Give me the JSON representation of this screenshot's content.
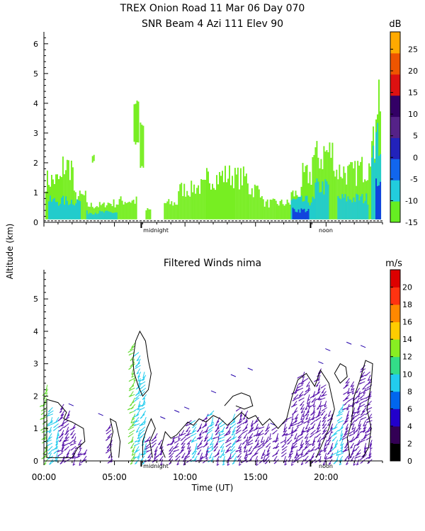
{
  "header": {
    "title_line1": "TREX Onion Road  11 Mar 06 Day 070",
    "title_line2": "SNR Beam 4 Azi 111 Elev 90"
  },
  "shared": {
    "ylabel": "Altitude (km)",
    "xlabel": "Time (UT)",
    "midnight_label": "midnight",
    "noon_label": "noon"
  },
  "chart_data": [
    {
      "type": "heatmap",
      "title": "",
      "colorbar_label": "dB",
      "ylim": [
        0,
        6.4
      ],
      "xlim": [
        0,
        24
      ],
      "y_ticks": [
        0,
        1,
        2,
        3,
        4,
        5,
        6
      ],
      "colorbar_ticks": [
        25,
        20,
        15,
        10,
        5,
        0,
        -5,
        -10,
        -15
      ],
      "colorbar_range": [
        -15,
        29
      ],
      "colorbar_colors": [
        "#66ee22",
        "#22ccdd",
        "#1166ee",
        "#2222bb",
        "#552288",
        "#330066",
        "#dd1111",
        "#ee5500",
        "#ffaa00"
      ],
      "colors": {
        "low": "#77ee22",
        "mid": "#22cccc",
        "high": "#1144dd",
        "peak": "#2a1a88"
      },
      "blocks": [
        {
          "x0": 0.1,
          "x1": 1.3,
          "top": 1.8
        },
        {
          "x0": 1.3,
          "x1": 2.1,
          "top": 2.4
        },
        {
          "x0": 2.1,
          "x1": 3.0,
          "top": 1.1
        },
        {
          "x0": 3.0,
          "x1": 4.3,
          "top": 0.7
        },
        {
          "x0": 4.3,
          "x1": 5.3,
          "top": 0.8
        },
        {
          "x0": 5.3,
          "x1": 6.6,
          "top": 0.9
        },
        {
          "x0": 7.2,
          "x1": 7.6,
          "top": 0.5
        },
        {
          "x0": 8.5,
          "x1": 9.5,
          "top": 0.8
        },
        {
          "x0": 9.5,
          "x1": 10.5,
          "top": 1.4
        },
        {
          "x0": 10.5,
          "x1": 11.5,
          "top": 1.5
        },
        {
          "x0": 11.5,
          "x1": 12.5,
          "top": 1.9
        },
        {
          "x0": 12.5,
          "x1": 13.5,
          "top": 2.0
        },
        {
          "x0": 13.5,
          "x1": 14.5,
          "top": 1.9
        },
        {
          "x0": 14.5,
          "x1": 15.5,
          "top": 1.4
        },
        {
          "x0": 15.5,
          "x1": 16.5,
          "top": 0.8
        },
        {
          "x0": 16.5,
          "x1": 17.5,
          "top": 0.8
        },
        {
          "x0": 17.5,
          "x1": 18.3,
          "top": 1.2
        },
        {
          "x0": 18.3,
          "x1": 19.0,
          "top": 2.0
        },
        {
          "x0": 19.0,
          "x1": 19.8,
          "top": 2.8
        },
        {
          "x0": 19.8,
          "x1": 20.6,
          "top": 3.0
        },
        {
          "x0": 20.6,
          "x1": 21.4,
          "top": 2.2
        },
        {
          "x0": 21.4,
          "x1": 22.2,
          "top": 2.1
        },
        {
          "x0": 22.2,
          "x1": 23.0,
          "top": 2.3
        },
        {
          "x0": 23.0,
          "x1": 23.5,
          "top": 3.3
        },
        {
          "x0": 23.5,
          "x1": 23.9,
          "top": 5.6
        }
      ],
      "cores": [
        {
          "x0": 0.3,
          "x1": 2.6,
          "top": 0.9
        },
        {
          "x0": 3.0,
          "x1": 5.2,
          "top": 0.4
        },
        {
          "x0": 17.5,
          "x1": 19.2,
          "top": 0.9
        },
        {
          "x0": 19.2,
          "x1": 20.2,
          "top": 1.5
        },
        {
          "x0": 20.8,
          "x1": 23.0,
          "top": 1.0
        },
        {
          "x0": 23.2,
          "x1": 23.9,
          "top": 3.5
        }
      ],
      "strong": [
        {
          "x0": 17.6,
          "x1": 18.8,
          "top": 0.5
        },
        {
          "x0": 23.5,
          "x1": 23.9,
          "top": 1.5
        }
      ],
      "floating": [
        {
          "x0": 6.35,
          "x1": 6.7,
          "y0": 2.6,
          "y1": 4.1
        },
        {
          "x0": 6.8,
          "x1": 7.05,
          "y0": 1.8,
          "y1": 3.4
        },
        {
          "x0": 3.4,
          "x1": 3.55,
          "y0": 2.0,
          "y1": 2.4
        }
      ]
    },
    {
      "type": "scatter",
      "title": "Filtered Winds nima",
      "colorbar_label": "m/s",
      "ylim": [
        0,
        5.9
      ],
      "xlim": [
        0,
        24
      ],
      "y_ticks": [
        0,
        1,
        2,
        3,
        4,
        5
      ],
      "x_ticks": [
        0,
        5,
        10,
        15,
        20
      ],
      "x_tick_labels": [
        "00:00",
        "05:00",
        "10:00",
        "15:00",
        "20:00"
      ],
      "colorbar_ticks": [
        20,
        18,
        16,
        14,
        12,
        10,
        8,
        6,
        4,
        2,
        0
      ],
      "colorbar_range": [
        0,
        22
      ],
      "colorbar_colors": [
        "#000000",
        "#330055",
        "#2200cc",
        "#0066ee",
        "#22ccee",
        "#33dd88",
        "#88ee22",
        "#ffcc00",
        "#ff8800",
        "#ff3311",
        "#dd0000"
      ],
      "wind_colors": {
        "purple": "#5511aa",
        "cyan": "#22ccee",
        "green": "#66dd33",
        "blue": "#2244ee"
      },
      "wind_columns": [
        {
          "x": 0.2,
          "top": 2.4,
          "color": "green"
        },
        {
          "x": 0.6,
          "top": 1.7,
          "color": "cyan"
        },
        {
          "x": 1.0,
          "top": 1.4,
          "color": "cyan"
        },
        {
          "x": 1.4,
          "top": 1.8,
          "color": "purple"
        },
        {
          "x": 1.8,
          "top": 1.6,
          "color": "purple"
        },
        {
          "x": 2.2,
          "top": 1.2,
          "color": "purple"
        },
        {
          "x": 2.6,
          "top": 0.7,
          "color": "purple"
        },
        {
          "x": 3.0,
          "top": 0.4,
          "color": "purple"
        },
        {
          "x": 4.8,
          "top": 1.2,
          "color": "purple"
        },
        {
          "x": 6.4,
          "top": 3.7,
          "color": "green"
        },
        {
          "x": 6.8,
          "top": 3.4,
          "color": "cyan"
        },
        {
          "x": 7.2,
          "top": 2.8,
          "color": "cyan"
        },
        {
          "x": 7.6,
          "top": 0.8,
          "color": "purple"
        },
        {
          "x": 8.0,
          "top": 0.9,
          "color": "purple"
        },
        {
          "x": 8.4,
          "top": 0.7,
          "color": "purple"
        },
        {
          "x": 9.2,
          "top": 0.8,
          "color": "purple"
        },
        {
          "x": 9.6,
          "top": 0.9,
          "color": "purple"
        },
        {
          "x": 10.0,
          "top": 1.0,
          "color": "purple"
        },
        {
          "x": 10.4,
          "top": 1.3,
          "color": "purple"
        },
        {
          "x": 10.8,
          "top": 1.3,
          "color": "cyan"
        },
        {
          "x": 11.2,
          "top": 1.2,
          "color": "purple"
        },
        {
          "x": 11.6,
          "top": 1.5,
          "color": "purple"
        },
        {
          "x": 12.0,
          "top": 1.6,
          "color": "cyan"
        },
        {
          "x": 12.4,
          "top": 1.4,
          "color": "purple"
        },
        {
          "x": 12.8,
          "top": 1.3,
          "color": "cyan"
        },
        {
          "x": 13.2,
          "top": 1.2,
          "color": "purple"
        },
        {
          "x": 13.6,
          "top": 1.5,
          "color": "cyan"
        },
        {
          "x": 14.0,
          "top": 1.7,
          "color": "purple"
        },
        {
          "x": 14.4,
          "top": 1.6,
          "color": "purple"
        },
        {
          "x": 14.8,
          "top": 1.3,
          "color": "purple"
        },
        {
          "x": 15.2,
          "top": 1.4,
          "color": "purple"
        },
        {
          "x": 15.6,
          "top": 1.1,
          "color": "purple"
        },
        {
          "x": 16.0,
          "top": 1.2,
          "color": "purple"
        },
        {
          "x": 16.6,
          "top": 1.1,
          "color": "purple"
        },
        {
          "x": 17.2,
          "top": 1.3,
          "color": "purple"
        },
        {
          "x": 17.6,
          "top": 1.5,
          "color": "purple"
        },
        {
          "x": 18.0,
          "top": 2.4,
          "color": "purple"
        },
        {
          "x": 18.4,
          "top": 2.8,
          "color": "purple"
        },
        {
          "x": 18.8,
          "top": 2.6,
          "color": "purple"
        },
        {
          "x": 19.2,
          "top": 2.2,
          "color": "purple"
        },
        {
          "x": 19.6,
          "top": 2.9,
          "color": "purple"
        },
        {
          "x": 20.0,
          "top": 2.4,
          "color": "purple"
        },
        {
          "x": 20.4,
          "top": 1.6,
          "color": "purple"
        },
        {
          "x": 20.8,
          "top": 1.2,
          "color": "cyan"
        },
        {
          "x": 21.2,
          "top": 1.8,
          "color": "cyan"
        },
        {
          "x": 21.6,
          "top": 2.6,
          "color": "purple"
        },
        {
          "x": 22.0,
          "top": 2.5,
          "color": "purple"
        },
        {
          "x": 22.4,
          "top": 2.3,
          "color": "purple"
        },
        {
          "x": 22.8,
          "top": 3.0,
          "color": "purple"
        },
        {
          "x": 23.2,
          "top": 2.8,
          "color": "purple"
        }
      ],
      "contours": [
        [
          [
            0.2,
            1.9
          ],
          [
            1.0,
            1.8
          ],
          [
            1.6,
            1.5
          ],
          [
            1.4,
            1.3
          ],
          [
            2.0,
            1.2
          ],
          [
            2.8,
            1.0
          ],
          [
            2.9,
            0.6
          ],
          [
            2.4,
            0.4
          ],
          [
            2.0,
            0.1
          ],
          [
            0.2,
            0.1
          ],
          [
            0.2,
            1.9
          ]
        ],
        [
          [
            4.8,
            0.1
          ],
          [
            4.7,
            0.5
          ],
          [
            4.9,
            0.9
          ],
          [
            4.7,
            1.3
          ],
          [
            5.1,
            1.2
          ],
          [
            5.4,
            0.6
          ],
          [
            5.3,
            0.1
          ]
        ],
        [
          [
            6.3,
            3.1
          ],
          [
            6.5,
            3.7
          ],
          [
            6.8,
            4.0
          ],
          [
            7.2,
            3.7
          ],
          [
            7.4,
            3.1
          ],
          [
            7.6,
            2.7
          ],
          [
            7.4,
            2.2
          ],
          [
            7.0,
            2.0
          ],
          [
            6.7,
            2.3
          ],
          [
            6.4,
            2.7
          ],
          [
            6.3,
            3.1
          ]
        ],
        [
          [
            7.0,
            0.1
          ],
          [
            7.0,
            0.6
          ],
          [
            7.3,
            1.0
          ],
          [
            7.6,
            1.3
          ],
          [
            7.9,
            1.0
          ],
          [
            7.5,
            0.6
          ],
          [
            7.7,
            0.1
          ]
        ],
        [
          [
            8.6,
            0.1
          ],
          [
            8.3,
            0.4
          ],
          [
            8.6,
            0.9
          ],
          [
            9.0,
            0.7
          ],
          [
            9.4,
            0.8
          ],
          [
            9.8,
            1.0
          ],
          [
            10.2,
            1.2
          ],
          [
            10.6,
            1.1
          ],
          [
            11.0,
            1.3
          ],
          [
            11.5,
            1.2
          ],
          [
            12.0,
            1.4
          ],
          [
            12.5,
            1.3
          ],
          [
            13.0,
            1.1
          ],
          [
            13.5,
            1.3
          ],
          [
            14.0,
            1.5
          ],
          [
            14.5,
            1.3
          ],
          [
            15.0,
            1.4
          ],
          [
            15.5,
            1.1
          ],
          [
            16.0,
            1.3
          ],
          [
            16.6,
            1.0
          ],
          [
            17.2,
            1.3
          ],
          [
            17.6,
            2.0
          ],
          [
            18.0,
            2.5
          ],
          [
            18.6,
            2.7
          ],
          [
            19.2,
            2.3
          ],
          [
            19.6,
            2.8
          ],
          [
            20.2,
            2.4
          ],
          [
            20.6,
            1.6
          ],
          [
            20.2,
            1.0
          ],
          [
            19.7,
            0.5
          ],
          [
            19.3,
            0.1
          ]
        ],
        [
          [
            12.8,
            1.7
          ],
          [
            13.4,
            2.0
          ],
          [
            14.0,
            2.1
          ],
          [
            14.6,
            2.0
          ],
          [
            14.8,
            1.7
          ],
          [
            14.2,
            1.6
          ],
          [
            13.6,
            1.7
          ]
        ],
        [
          [
            21.7,
            0.1
          ],
          [
            21.5,
            0.7
          ],
          [
            21.8,
            1.2
          ],
          [
            22.0,
            2.0
          ],
          [
            22.4,
            2.5
          ],
          [
            22.8,
            3.1
          ],
          [
            23.3,
            3.0
          ],
          [
            23.2,
            2.4
          ],
          [
            22.9,
            1.6
          ],
          [
            23.2,
            1.0
          ],
          [
            23.0,
            0.4
          ],
          [
            22.6,
            0.1
          ]
        ],
        [
          [
            20.6,
            2.7
          ],
          [
            21.0,
            3.0
          ],
          [
            21.4,
            2.9
          ],
          [
            21.5,
            2.6
          ],
          [
            21.0,
            2.4
          ],
          [
            20.6,
            2.7
          ]
        ]
      ],
      "scattered_barbs": [
        {
          "x": 2.1,
          "y": 1.7
        },
        {
          "x": 4.2,
          "y": 1.4
        },
        {
          "x": 8.6,
          "y": 1.3
        },
        {
          "x": 9.6,
          "y": 1.5
        },
        {
          "x": 10.3,
          "y": 1.6
        },
        {
          "x": 12.2,
          "y": 2.1
        },
        {
          "x": 13.6,
          "y": 2.6
        },
        {
          "x": 14.8,
          "y": 2.8
        },
        {
          "x": 16.4,
          "y": 1.1
        },
        {
          "x": 19.8,
          "y": 3.0
        },
        {
          "x": 20.3,
          "y": 3.4
        },
        {
          "x": 21.8,
          "y": 3.6
        },
        {
          "x": 22.8,
          "y": 3.5
        }
      ]
    }
  ]
}
